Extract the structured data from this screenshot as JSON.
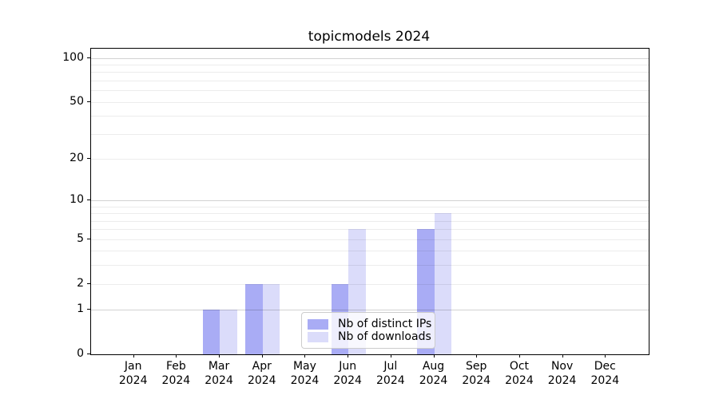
{
  "title": "topicmodels 2024",
  "chart_data": {
    "type": "bar",
    "title": "topicmodels 2024",
    "categories": [
      "Jan 2024",
      "Feb 2024",
      "Mar 2024",
      "Apr 2024",
      "May 2024",
      "Jun 2024",
      "Jul 2024",
      "Aug 2024",
      "Sep 2024",
      "Oct 2024",
      "Nov 2024",
      "Dec 2024"
    ],
    "series": [
      {
        "name": "Nb of distinct IPs",
        "color": "#a9acf5",
        "values": [
          0,
          0,
          1,
          2,
          0,
          2,
          0,
          6,
          0,
          0,
          0,
          0
        ]
      },
      {
        "name": "Nb of downloads",
        "color": "#dbdcfa",
        "values": [
          0,
          0,
          1,
          2,
          0,
          6,
          0,
          8,
          0,
          0,
          0,
          0
        ]
      }
    ],
    "xlabel": "",
    "ylabel": "",
    "yscale": "log1p",
    "ylim": [
      0,
      115.6
    ],
    "ytick_values": [
      0,
      1,
      2,
      5,
      10,
      20,
      50,
      100
    ],
    "grid_major_values": [
      1,
      10,
      100
    ],
    "grid_minor_values": [
      2,
      3,
      4,
      5,
      6,
      7,
      8,
      9,
      20,
      30,
      40,
      50,
      60,
      70,
      80,
      90
    ],
    "grid": "on",
    "legend_position": "lower center inside"
  },
  "colors": {
    "axis": "#000000",
    "grid_major": "#d2d2d2",
    "grid_minor": "#ececec",
    "legend_border": "#cccccc",
    "legend_background": "rgba(255,255,255,0.8)"
  }
}
